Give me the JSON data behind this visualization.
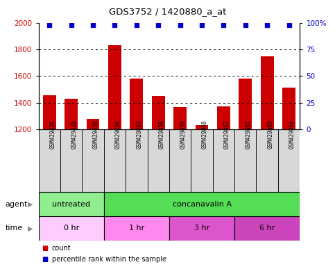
{
  "title": "GDS3752 / 1420880_a_at",
  "samples": [
    "GSM429426",
    "GSM429428",
    "GSM429430",
    "GSM429856",
    "GSM429857",
    "GSM429858",
    "GSM429859",
    "GSM429860",
    "GSM429862",
    "GSM429861",
    "GSM429863",
    "GSM429864"
  ],
  "bar_values": [
    1455,
    1430,
    1280,
    1830,
    1580,
    1450,
    1370,
    1235,
    1375,
    1580,
    1750,
    1515
  ],
  "bar_color": "#cc0000",
  "dot_color": "#0000cc",
  "ylim_left": [
    1200,
    2000
  ],
  "ylim_right": [
    0,
    100
  ],
  "yticks_left": [
    1200,
    1400,
    1600,
    1800,
    2000
  ],
  "yticks_right": [
    0,
    25,
    50,
    75,
    100
  ],
  "agent_groups": [
    {
      "label": "untreated",
      "start": 0,
      "end": 3,
      "color": "#90ee90"
    },
    {
      "label": "concanavalin A",
      "start": 3,
      "end": 12,
      "color": "#55dd55"
    }
  ],
  "time_groups": [
    {
      "label": "0 hr",
      "start": 0,
      "end": 3,
      "color": "#ffccff"
    },
    {
      "label": "1 hr",
      "start": 3,
      "end": 6,
      "color": "#ff88ee"
    },
    {
      "label": "3 hr",
      "start": 6,
      "end": 9,
      "color": "#dd55cc"
    },
    {
      "label": "6 hr",
      "start": 9,
      "end": 12,
      "color": "#cc44bb"
    }
  ],
  "agent_label": "agent",
  "time_label": "time",
  "legend_count_label": "count",
  "legend_pct_label": "percentile rank within the sample",
  "tick_label_color_left": "#cc0000",
  "tick_label_color_right": "#0000cc",
  "bar_width": 0.6,
  "background_color": "#ffffff"
}
